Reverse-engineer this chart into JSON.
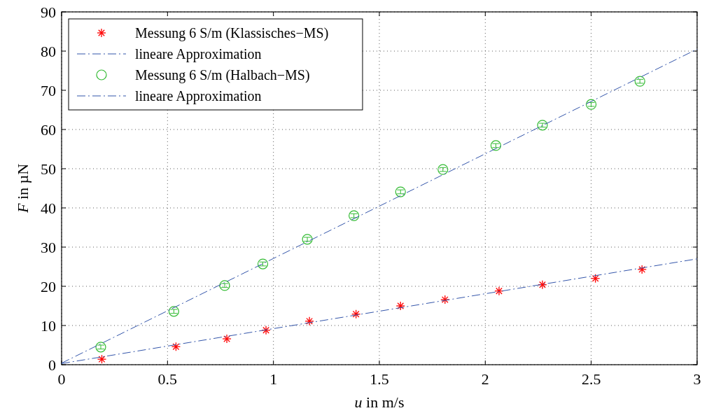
{
  "chart_data": {
    "type": "scatter",
    "xlabel": "u in m/s",
    "ylabel": "F in µN",
    "xlim": [
      0,
      3
    ],
    "ylim": [
      0,
      90
    ],
    "xticks": [
      0,
      0.5,
      1,
      1.5,
      2,
      2.5,
      3
    ],
    "yticks": [
      0,
      10,
      20,
      30,
      40,
      50,
      60,
      70,
      80,
      90
    ],
    "grid": true,
    "legend": "top left",
    "series": [
      {
        "name": "Messung 6 S/m (Klassisches−MS)",
        "color": "#ff0000",
        "marker": "cross",
        "x": [
          0.19,
          0.54,
          0.78,
          0.965,
          1.17,
          1.39,
          1.6,
          1.81,
          2.065,
          2.27,
          2.52,
          2.74
        ],
        "values": [
          1.4,
          4.6,
          6.6,
          8.8,
          11.1,
          12.9,
          15.0,
          16.6,
          18.8,
          20.4,
          22.0,
          24.3
        ]
      },
      {
        "type": "line",
        "name": "lineare Approximation",
        "color": "#3355aa",
        "marker": "none",
        "line_style": "dashed",
        "x": [
          0,
          3
        ],
        "values": [
          0.3,
          27
        ]
      },
      {
        "name": "Messung 6 S/m (Halbach−MS)",
        "color": "#33bb33",
        "marker": "circle",
        "x": [
          0.185,
          0.53,
          0.77,
          0.95,
          1.16,
          1.38,
          1.6,
          1.8,
          2.05,
          2.27,
          2.5,
          2.73
        ],
        "values": [
          4.5,
          13.6,
          20.2,
          25.7,
          32.0,
          38.0,
          44.1,
          49.8,
          55.9,
          61.1,
          66.4,
          72.3
        ],
        "errors": [
          0.5,
          0.5,
          0.5,
          0.5,
          0.5,
          0.5,
          0.5,
          0.5,
          0.5,
          0.5,
          0.5,
          0.5
        ]
      },
      {
        "type": "line",
        "name": "lineare Approximation",
        "color": "#3355aa",
        "marker": "none",
        "line_style": "dashed",
        "x": [
          0,
          3
        ],
        "values": [
          0.4,
          80.5
        ]
      }
    ]
  }
}
